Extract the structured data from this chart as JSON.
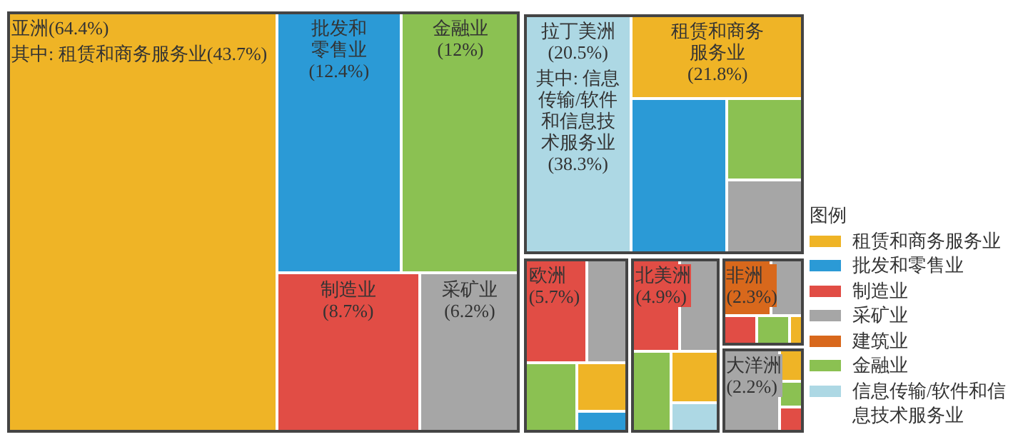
{
  "chart_data": {
    "type": "other",
    "legend": "right",
    "legend_title": "图例",
    "categories": [
      "亚洲",
      "其中: 租赁和商务服务业",
      "批发和零售业",
      "金融业",
      "制造业",
      "采矿业",
      "拉丁美洲",
      "其中: 信息传输/软件和信息技术服务业",
      "租赁和商务服务业",
      "欧洲",
      "北美洲",
      "非洲",
      "大洋洲"
    ],
    "series": [
      {
        "name": "租赁和商务服务业",
        "color": "#efb426",
        "values": [
          null,
          43.7,
          null,
          null,
          null,
          null,
          null,
          null,
          21.8,
          null,
          null,
          null,
          null
        ],
        "value_labels": [
          null,
          "(43.7%)",
          null,
          null,
          null,
          null,
          null,
          null,
          "(21.8%)",
          null,
          null,
          null,
          null
        ]
      },
      {
        "name": "批发和零售业",
        "color": "#2b9ad6",
        "values": [
          null,
          null,
          12.4,
          null,
          null,
          null,
          null,
          null,
          null,
          null,
          null,
          null,
          null
        ],
        "value_labels": [
          null,
          null,
          "(12.4%)",
          null,
          null,
          null,
          null,
          null,
          null,
          null,
          null,
          null,
          null
        ]
      },
      {
        "name": "制造业",
        "color": "#e14d45",
        "values": [
          null,
          null,
          null,
          null,
          8.7,
          null,
          null,
          null,
          null,
          null,
          null,
          null,
          null
        ],
        "value_labels": [
          null,
          null,
          null,
          null,
          "(8.7%)",
          null,
          null,
          null,
          null,
          null,
          null,
          null,
          null
        ]
      },
      {
        "name": "采矿业",
        "color": "#a6a6a6",
        "values": [
          null,
          null,
          null,
          null,
          null,
          6.2,
          null,
          null,
          null,
          null,
          null,
          null,
          null
        ],
        "value_labels": [
          null,
          null,
          null,
          null,
          null,
          "(6.2%)",
          null,
          null,
          null,
          null,
          null,
          null,
          null
        ]
      },
      {
        "name": "建筑业",
        "color": "#d8681c",
        "values": [
          null,
          null,
          null,
          null,
          null,
          null,
          null,
          null,
          null,
          null,
          null,
          null,
          null
        ]
      },
      {
        "name": "金融业",
        "color": "#8bc152",
        "values": [
          null,
          null,
          null,
          12,
          null,
          null,
          null,
          null,
          null,
          null,
          null,
          null,
          null
        ],
        "value_labels": [
          null,
          null,
          null,
          "(12%)",
          null,
          null,
          null,
          null,
          null,
          null,
          null,
          null,
          null
        ]
      },
      {
        "name": "信息传输/软件和信息技术服务业",
        "color": "#add8e4",
        "values": [
          null,
          null,
          null,
          null,
          null,
          null,
          null,
          38.3,
          null,
          null,
          null,
          null,
          null
        ],
        "value_labels": [
          null,
          null,
          null,
          null,
          null,
          null,
          null,
          "(38.3%)",
          null,
          null,
          null,
          null,
          null
        ]
      },
      {
        "colors": [
          "#efb426",
          null,
          null,
          null,
          null,
          null,
          "#add8e4",
          null,
          null,
          "#e14d45",
          "#e14d45",
          "#d8681c",
          "#a6a6a6"
        ],
        "values": [
          64.4,
          null,
          null,
          null,
          null,
          null,
          20.5,
          null,
          null,
          5.7,
          4.9,
          2.3,
          2.2
        ],
        "value_labels": [
          "(64.4%)",
          null,
          null,
          null,
          null,
          null,
          "(20.5%)",
          null,
          null,
          "(5.7%)",
          "(4.9%)",
          "(2.3%)",
          "(2.2%)"
        ]
      }
    ]
  }
}
